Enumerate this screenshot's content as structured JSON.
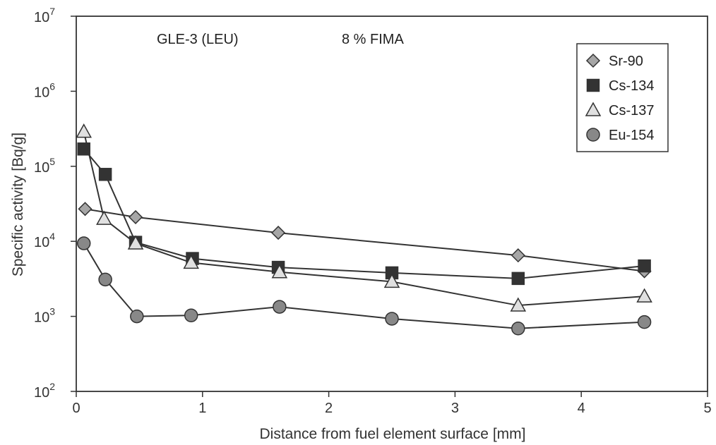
{
  "chart_data": {
    "type": "line",
    "xlabel": "Distance from fuel element surface [mm]",
    "ylabel": "Specific activity [Bq/g]",
    "xlim": [
      0,
      5
    ],
    "ylim": [
      100,
      10000000
    ],
    "yscale": "log",
    "x_ticks": [
      "0",
      "1",
      "2",
      "3",
      "4",
      "5"
    ],
    "y_ticks": [
      {
        "base": "10",
        "exp": "2"
      },
      {
        "base": "10",
        "exp": "3"
      },
      {
        "base": "10",
        "exp": "4"
      },
      {
        "base": "10",
        "exp": "5"
      },
      {
        "base": "10",
        "exp": "6"
      },
      {
        "base": "10",
        "exp": "7"
      }
    ],
    "annotations": [
      "GLE-3 (LEU)",
      "8 % FIMA"
    ],
    "grid": false,
    "legend_position": "top-right",
    "series": [
      {
        "name": "Sr-90",
        "marker": "diamond",
        "fill": "#a6a6a6",
        "x": [
          0.07,
          0.47,
          1.6,
          3.5,
          4.5
        ],
        "y": [
          27000,
          21000,
          13000,
          6500,
          4000
        ]
      },
      {
        "name": "Cs-134",
        "marker": "square",
        "fill": "#333333",
        "x": [
          0.06,
          0.23,
          0.47,
          0.92,
          1.6,
          2.5,
          3.5,
          4.5
        ],
        "y": [
          170000,
          78000,
          9700,
          5900,
          4500,
          3800,
          3200,
          4700
        ]
      },
      {
        "name": "Cs-137",
        "marker": "triangle",
        "fill": "#e0e0e0",
        "x": [
          0.06,
          0.22,
          0.47,
          0.91,
          1.61,
          2.5,
          3.5,
          4.5
        ],
        "y": [
          290000,
          20000,
          9400,
          5200,
          3900,
          2900,
          1400,
          1850
        ]
      },
      {
        "name": "Eu-154",
        "marker": "circle",
        "fill": "#888888",
        "x": [
          0.06,
          0.23,
          0.48,
          0.91,
          1.61,
          2.5,
          3.5,
          4.5
        ],
        "y": [
          9400,
          3100,
          1000,
          1030,
          1340,
          930,
          690,
          840
        ]
      }
    ]
  }
}
